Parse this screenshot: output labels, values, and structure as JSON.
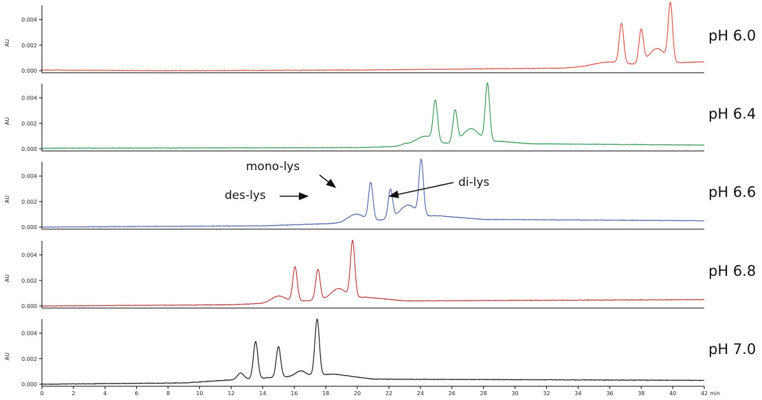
{
  "chart_data": {
    "type": "line",
    "x_unit": "min",
    "x_range": [
      0,
      42
    ],
    "x_ticks": [
      0,
      2,
      4,
      6,
      8,
      10,
      12,
      14,
      16,
      18,
      20,
      22,
      24,
      26,
      28,
      30,
      32,
      34,
      36,
      38,
      40,
      42
    ],
    "x_tick_labels": [
      "0",
      "2",
      "4",
      "6",
      "8",
      "10",
      "12",
      "14",
      "16",
      "18",
      "20",
      "22",
      "24",
      "26",
      "28",
      "30",
      "32",
      "34",
      "36",
      "38",
      "40",
      "42"
    ],
    "y_label": "AU",
    "y_range": [
      0,
      0.005
    ],
    "y_ticks": [
      0,
      0.002,
      0.004
    ],
    "y_tick_labels": [
      "0.000",
      "0.002",
      "0.004"
    ],
    "grid": false,
    "panels": [
      {
        "name": "pH 6.0",
        "color": "#d9534a",
        "baseline": [
          [
            0,
            5e-05
          ],
          [
            8,
            0.0
          ],
          [
            20,
            5e-05
          ],
          [
            33,
            0.0002
          ],
          [
            34.5,
            0.0003
          ],
          [
            42,
            0.0007
          ]
        ],
        "peaks": [
          [
            35.9,
            0.0003,
            0.9
          ],
          [
            36.75,
            0.0031,
            0.14
          ],
          [
            38.0,
            0.0026,
            0.14
          ],
          [
            39.0,
            0.0012,
            0.5
          ],
          [
            39.85,
            0.0045,
            0.14
          ]
        ]
      },
      {
        "name": "pH 6.4",
        "color": "#3a9a5a",
        "baseline": [
          [
            0,
            5e-05
          ],
          [
            20,
            0.0001
          ],
          [
            22.8,
            0.0002
          ],
          [
            29,
            0.0006
          ],
          [
            31,
            0.0004
          ],
          [
            42,
            0.0003
          ]
        ],
        "peaks": [
          [
            23.0,
            0.00012,
            0.3
          ],
          [
            24.3,
            0.0007,
            0.6
          ],
          [
            24.95,
            0.0031,
            0.14
          ],
          [
            26.2,
            0.0025,
            0.14
          ],
          [
            27.2,
            0.0011,
            0.5
          ],
          [
            28.25,
            0.0045,
            0.14
          ]
        ]
      },
      {
        "name": "pH 6.6",
        "color": "#5568a8",
        "baseline": [
          [
            0,
            0.0
          ],
          [
            14,
            0.0001
          ],
          [
            18.8,
            0.0003
          ],
          [
            25,
            0.0009
          ],
          [
            28,
            0.0006
          ],
          [
            42,
            0.0005
          ]
        ],
        "peaks": [
          [
            19.9,
            0.0006,
            0.5
          ],
          [
            20.85,
            0.0029,
            0.14
          ],
          [
            22.1,
            0.0023,
            0.14
          ],
          [
            23.2,
            0.001,
            0.5
          ],
          [
            24.05,
            0.0043,
            0.14
          ]
        ]
      },
      {
        "name": "pH 6.8",
        "color": "#b83c40",
        "baseline": [
          [
            0,
            0.0
          ],
          [
            12,
            0.0001
          ],
          [
            14,
            0.0002
          ],
          [
            20.5,
            0.0007
          ],
          [
            23,
            0.0004
          ],
          [
            42,
            0.0005
          ]
        ],
        "peaks": [
          [
            15.0,
            0.0005,
            0.45
          ],
          [
            16.05,
            0.0027,
            0.14
          ],
          [
            17.5,
            0.0024,
            0.14
          ],
          [
            18.8,
            0.0008,
            0.45
          ],
          [
            19.7,
            0.0044,
            0.14
          ]
        ]
      },
      {
        "name": "pH 7.0",
        "color": "#1a1a1a",
        "baseline": [
          [
            0,
            0.0
          ],
          [
            9,
            0.0001
          ],
          [
            11.5,
            0.0003
          ],
          [
            18.5,
            0.0008
          ],
          [
            21,
            0.0004
          ],
          [
            42,
            0.0003
          ]
        ],
        "peaks": [
          [
            12.6,
            0.0005,
            0.2
          ],
          [
            13.55,
            0.0029,
            0.14
          ],
          [
            15.0,
            0.0024,
            0.14
          ],
          [
            16.4,
            0.0004,
            0.3
          ],
          [
            17.45,
            0.0044,
            0.14
          ]
        ]
      }
    ],
    "annotations": [
      {
        "text": "mono-lys",
        "panel": 2,
        "x": 22.0,
        "y": 0.0032
      },
      {
        "text": "des-lys",
        "panel": 2,
        "x": 20.6,
        "y": 0.0025
      },
      {
        "text": "di-lys",
        "panel": 2,
        "x": 24.5,
        "y": 0.0025
      }
    ]
  }
}
